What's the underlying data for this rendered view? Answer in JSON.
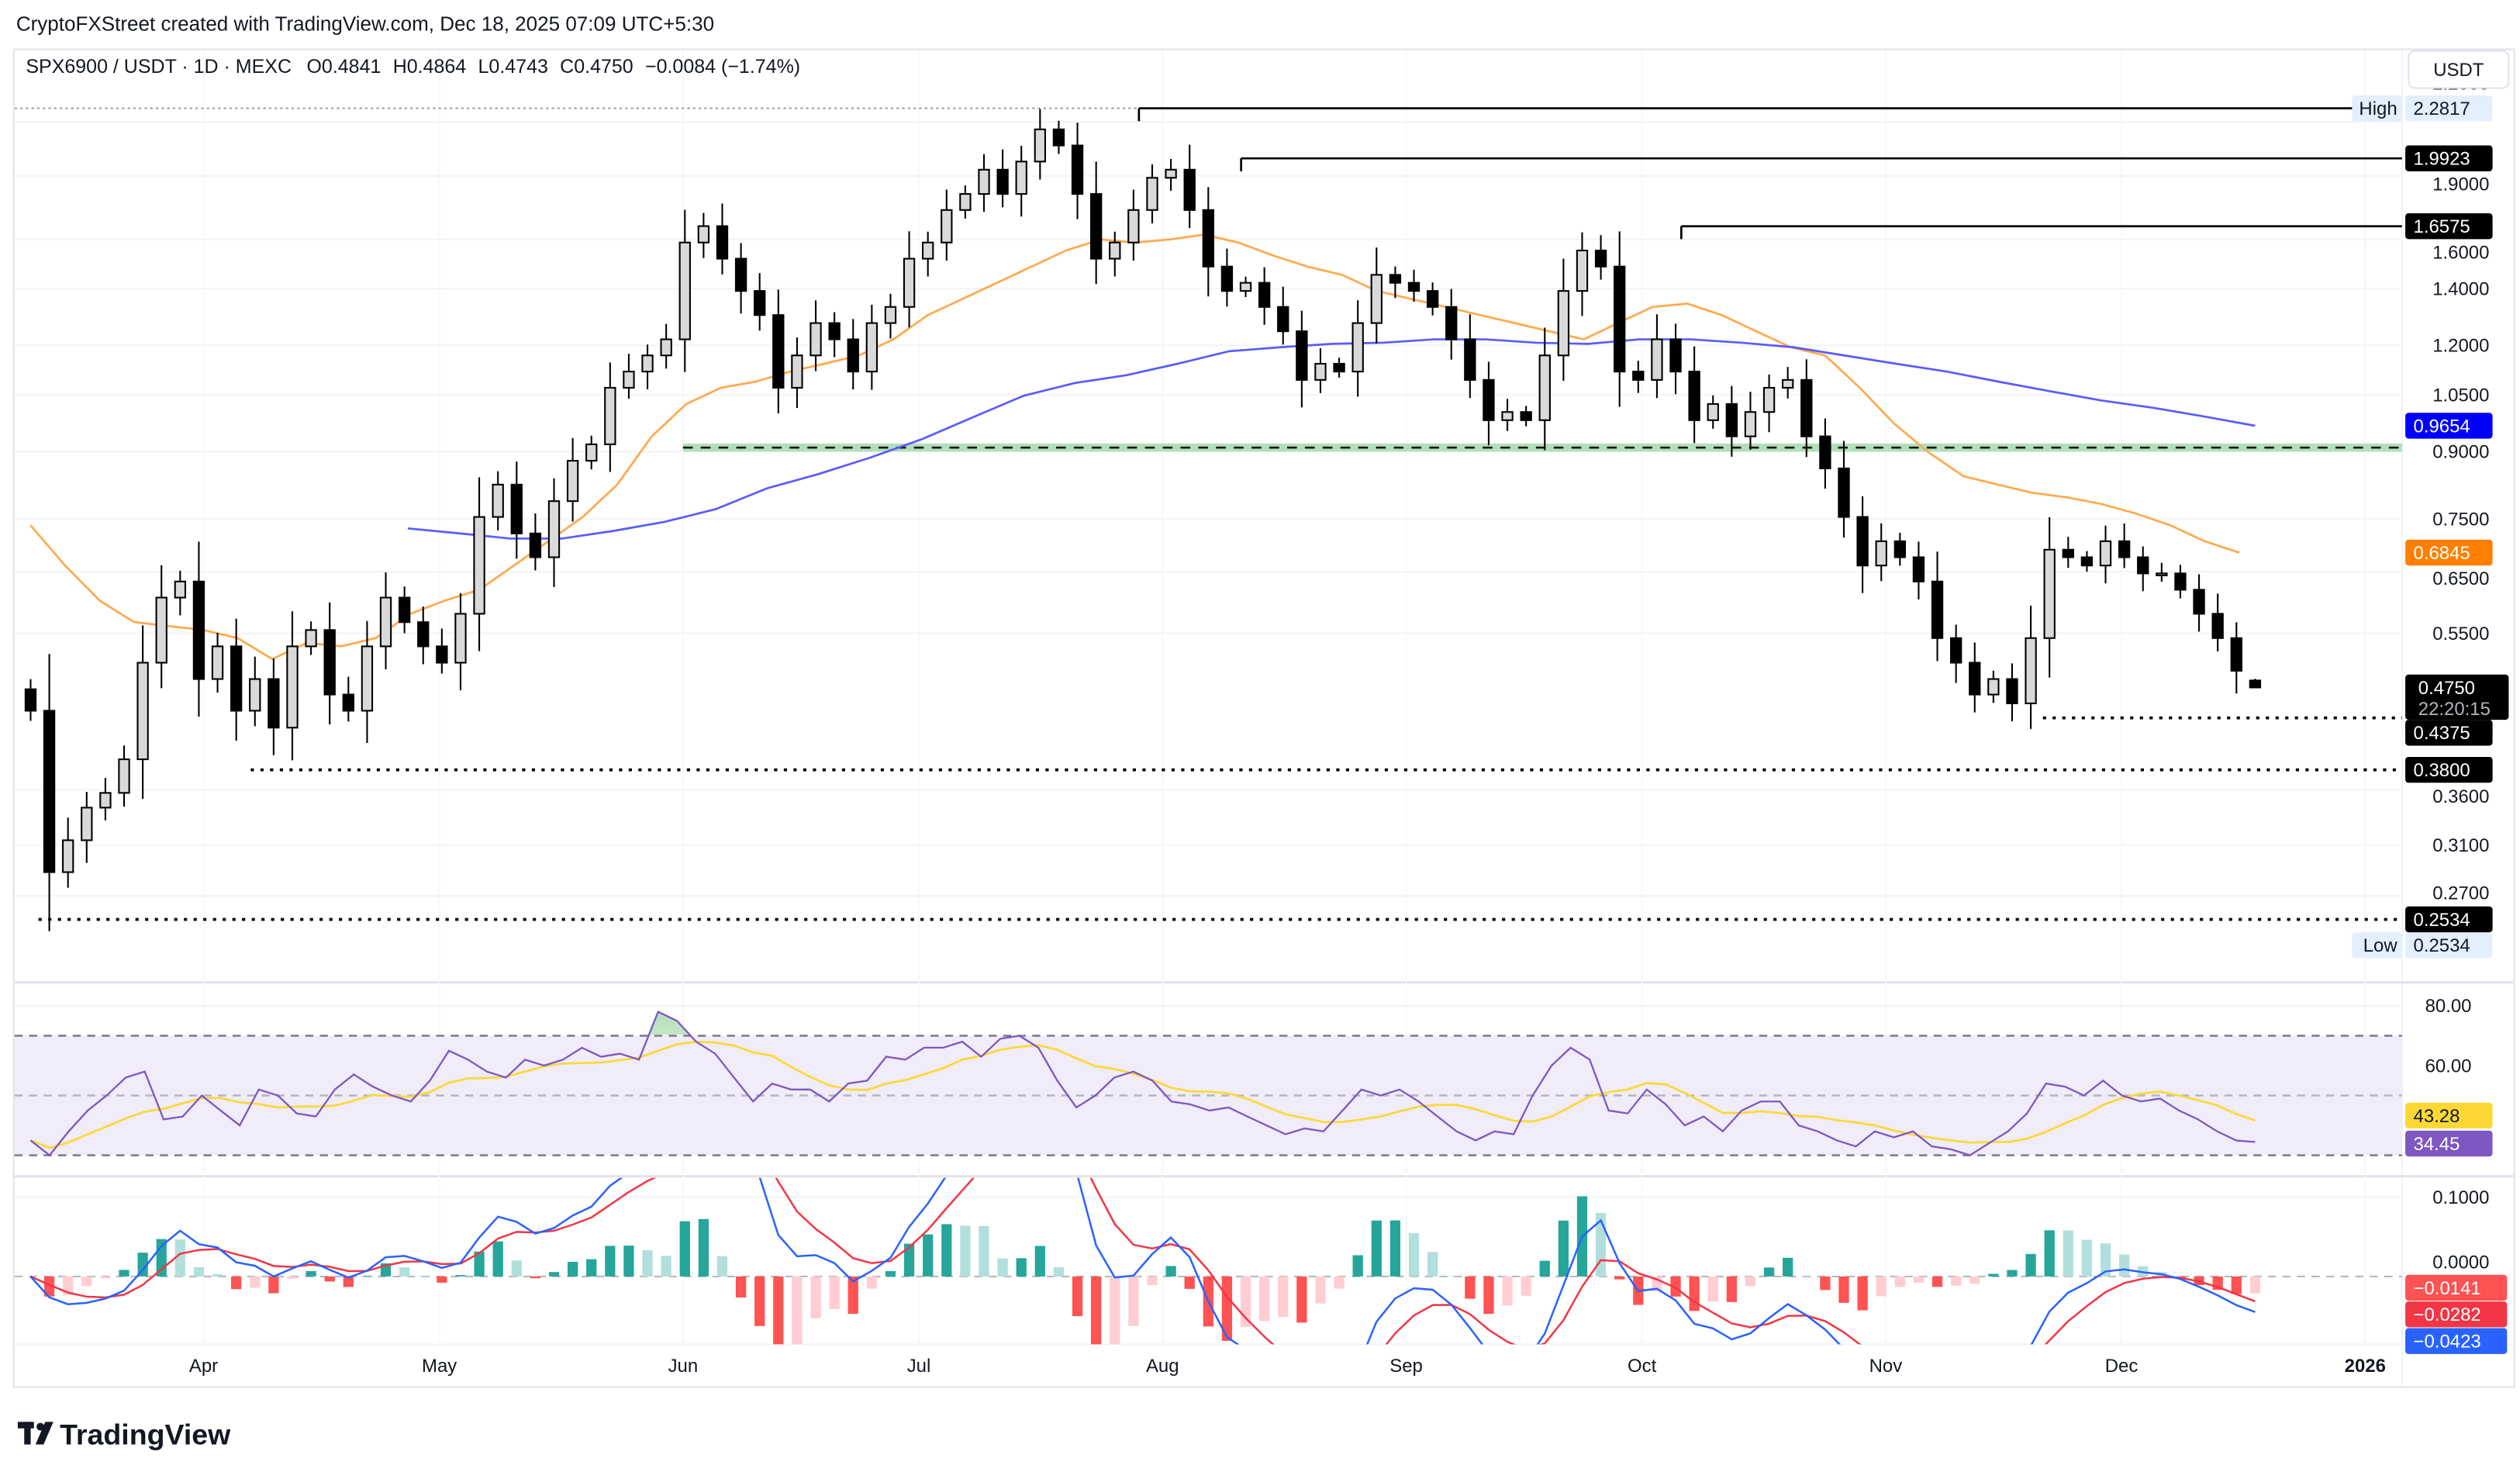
{
  "header": {
    "credit": "CryptoFXStreet created with TradingView.com, Dec 18, 2025 07:09 UTC+5:30"
  },
  "legend": {
    "symbol": "SPX6900 / USDT · 1D · MEXC",
    "open": "O0.4841",
    "high": "H0.4864",
    "low": "L0.4743",
    "close": "C0.4750",
    "change": "−0.0084 (−1.74%)",
    "ohlc_values": {
      "open": 0.4841,
      "high": 0.4864,
      "low": 0.4743,
      "close": 0.475
    }
  },
  "currency_button": "USDT",
  "branding": {
    "logo_text": "TradingView"
  },
  "colors": {
    "up_candle": "#d9d9d9",
    "down_candle": "#000000",
    "ma_fast": "#ffa94d",
    "ma_slow": "#5b5bff",
    "support_zone": "#b2dfb9",
    "rsi": "#7e57c2",
    "rsi_ma": "#fdd835",
    "rsi_band": "#f0ecf9",
    "macd": "#2962ff",
    "signal": "#f23645",
    "hist_up_strong": "#26a69a",
    "hist_up_weak": "#b2dfdb",
    "hist_down_strong": "#ff5252",
    "hist_down_weak": "#ffcdd2"
  },
  "chart_data": [
    {
      "type": "candlestick",
      "scale": "log",
      "ylim": [
        0.2534,
        2.2817
      ],
      "x_range": [
        "2025-03-10",
        "2025-12-18"
      ],
      "grid": true,
      "y_ticks": [
        "2.2000",
        "1.9000",
        "1.6000",
        "1.4000",
        "1.2000",
        "1.0500",
        "0.9000",
        "0.7500",
        "0.6500",
        "0.5500",
        "0.3600",
        "0.3100",
        "0.2700"
      ],
      "x_ticks": [
        {
          "label": "Apr",
          "date": "2025-04-01"
        },
        {
          "label": "May",
          "date": "2025-05-01"
        },
        {
          "label": "Jun",
          "date": "2025-06-01"
        },
        {
          "label": "Jul",
          "date": "2025-07-01"
        },
        {
          "label": "Aug",
          "date": "2025-08-01"
        },
        {
          "label": "Sep",
          "date": "2025-09-01"
        },
        {
          "label": "Oct",
          "date": "2025-10-01"
        },
        {
          "label": "Nov",
          "date": "2025-11-01"
        },
        {
          "label": "Dec",
          "date": "2025-12-01"
        },
        {
          "label": "2026",
          "date": "2026-01-01",
          "bold": true
        }
      ],
      "closes": [
        0.446,
        0.288,
        0.314,
        0.343,
        0.357,
        0.391,
        0.508,
        0.606,
        0.633,
        0.486,
        0.531,
        0.446,
        0.486,
        0.426,
        0.531,
        0.555,
        0.466,
        0.446,
        0.531,
        0.606,
        0.567,
        0.531,
        0.508,
        0.58,
        0.754,
        0.823,
        0.721,
        0.676,
        0.787,
        0.878,
        0.918,
        1.07,
        1.118,
        1.168,
        1.22,
        1.586,
        1.658,
        1.518,
        1.391,
        1.303,
        1.07,
        1.168,
        1.275,
        1.22,
        1.118,
        1.275,
        1.332,
        1.518,
        1.586,
        1.732,
        1.809,
        1.932,
        1.809,
        1.975,
        2.155,
        2.063,
        1.809,
        1.518,
        1.586,
        1.732,
        1.89,
        1.932,
        1.732,
        1.486,
        1.391,
        1.422,
        1.332,
        1.247,
        1.093,
        1.142,
        1.118,
        1.275,
        1.453,
        1.422,
        1.391,
        1.332,
        1.22,
        1.093,
        0.98,
        1.002,
        0.98,
        1.168,
        1.391,
        1.552,
        1.486,
        1.118,
        1.093,
        1.22,
        1.118,
        0.98,
        1.024,
        0.938,
        1.002,
        1.07,
        1.093,
        0.938,
        0.86,
        0.754,
        0.661,
        0.706,
        0.676,
        0.633,
        0.543,
        0.508,
        0.466,
        0.486,
        0.455,
        0.543,
        0.69,
        0.676,
        0.661,
        0.706,
        0.676,
        0.647,
        0.647,
        0.619,
        0.58,
        0.543,
        0.497,
        0.475
      ],
      "ma_fast": {
        "range": [
          "2025-03-10",
          "2025-12-16"
        ],
        "last": "0.6845",
        "values": [
          0.737,
          0.661,
          0.601,
          0.567,
          0.561,
          0.555,
          0.543,
          0.513,
          0.536,
          0.531,
          0.543,
          0.58,
          0.601,
          0.619,
          0.661,
          0.706,
          0.754,
          0.823,
          0.938,
          1.024,
          1.07,
          1.088,
          1.118,
          1.142,
          1.168,
          1.22,
          1.303,
          1.361,
          1.422,
          1.486,
          1.552,
          1.599,
          1.586,
          1.599,
          1.62,
          1.586,
          1.531,
          1.486,
          1.453,
          1.391,
          1.361,
          1.332,
          1.303,
          1.275,
          1.247,
          1.22,
          1.275,
          1.332,
          1.344,
          1.303,
          1.247,
          1.194,
          1.168,
          1.07,
          0.971,
          0.898,
          0.842,
          0.823,
          0.805,
          0.795,
          0.781,
          0.761,
          0.737,
          0.706,
          0.6845
        ]
      },
      "ma_slow": {
        "range": [
          "2025-04-27",
          "2025-12-18"
        ],
        "last": "0.9654",
        "values": [
          0.731,
          0.721,
          0.711,
          0.711,
          0.726,
          0.744,
          0.77,
          0.815,
          0.847,
          0.885,
          0.93,
          0.987,
          1.047,
          1.084,
          1.107,
          1.142,
          1.181,
          1.194,
          1.205,
          1.209,
          1.22,
          1.22,
          1.209,
          1.205,
          1.22,
          1.22,
          1.209,
          1.194,
          1.168,
          1.142,
          1.118,
          1.088,
          1.06,
          1.034,
          1.014,
          0.99,
          0.9654
        ]
      },
      "support_zone": [
        0.9,
        0.92
      ],
      "levels": [
        {
          "price": 2.2817,
          "label": "2.2817",
          "style": "solid",
          "from": "2025-07-29",
          "tag": "High"
        },
        {
          "price": 1.9923,
          "label": "1.9923",
          "style": "solid",
          "from": "2025-08-11"
        },
        {
          "price": 1.6575,
          "label": "1.6575",
          "style": "solid",
          "from": "2025-10-06"
        },
        {
          "price": 0.4375,
          "label": "0.4375",
          "style": "dotted",
          "from": "2025-11-21"
        },
        {
          "price": 0.38,
          "label": "0.3800",
          "style": "dotted",
          "from": "2025-04-07"
        },
        {
          "price": 0.2534,
          "label": "0.2534",
          "style": "dotted",
          "from": "2025-03-11",
          "tag": "Low"
        }
      ],
      "last_price": {
        "label": "0.4750",
        "countdown": "22:20:15"
      }
    },
    {
      "type": "line",
      "name": "RSI",
      "ylim": [
        20,
        90
      ],
      "y_ticks": [
        "80.00",
        "60.00"
      ],
      "bands": [
        30,
        50,
        70
      ],
      "values": [
        35,
        30,
        38,
        45,
        50,
        56,
        58,
        42,
        43,
        50,
        45,
        40,
        52,
        50,
        44,
        43,
        52,
        57,
        53,
        50,
        48,
        55,
        65,
        62,
        58,
        56,
        62,
        60,
        62,
        66,
        63,
        64,
        62,
        78,
        75,
        68,
        64,
        56,
        48,
        54,
        52,
        52,
        48,
        54,
        55,
        63,
        62,
        66,
        66,
        68,
        63,
        69,
        70,
        66,
        55,
        46,
        50,
        56,
        58,
        55,
        48,
        47,
        45,
        46,
        43,
        40,
        37,
        39,
        38,
        45,
        52,
        50,
        52,
        48,
        43,
        38,
        35,
        38,
        37,
        50,
        60,
        66,
        62,
        45,
        44,
        52,
        47,
        40,
        43,
        38,
        45,
        48,
        48,
        40,
        38,
        35,
        33,
        38,
        36,
        38,
        33,
        32,
        30,
        34,
        38,
        44,
        54,
        53,
        50,
        55,
        50,
        48,
        49,
        45,
        42,
        38,
        35,
        34.45
      ],
      "rsi_ma_label": "43.28",
      "rsi_label": "34.45"
    },
    {
      "type": "bar+line",
      "name": "MACD",
      "y_ticks": [
        "0.1000",
        "0.0000"
      ],
      "labels": {
        "histogram": "−0.0141",
        "signal": "−0.0282",
        "macd": "−0.0423"
      }
    }
  ]
}
